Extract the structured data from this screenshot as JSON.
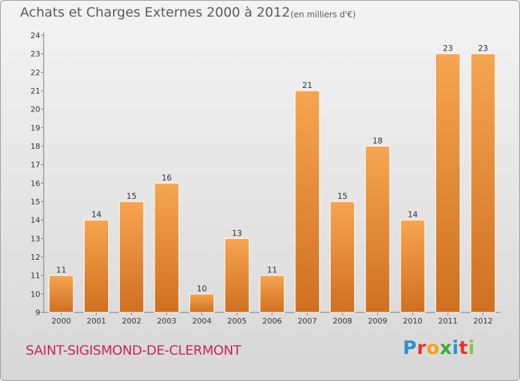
{
  "header": {
    "title": "Achats et Charges Externes 2000 à 2012",
    "unit": "(en milliers d'€)"
  },
  "footer": {
    "commune": "SAINT-SIGISMOND-DE-CLERMONT",
    "logo_text": "Proxiti"
  },
  "colors": {
    "bar_light": "#f6a550",
    "bar_dark": "#cf7020",
    "commune": "#c8245a",
    "logo_p": "#2f8fd0",
    "logo_r": "#e5352b",
    "logo_o": "#f3a21a",
    "logo_x": "#3aaa35",
    "logo_i": "#2f8fd0",
    "logo_t": "#e5352b",
    "logo_i2": "#8bc23f"
  },
  "chart_data": {
    "type": "bar",
    "title": "Achats et Charges Externes 2000 à 2012",
    "subtitle": "(en milliers d'€)",
    "categories": [
      "2000",
      "2001",
      "2002",
      "2003",
      "2004",
      "2005",
      "2006",
      "2007",
      "2008",
      "2009",
      "2010",
      "2011",
      "2012"
    ],
    "values": [
      11,
      14,
      15,
      16,
      10,
      13,
      11,
      21,
      15,
      18,
      14,
      23,
      23
    ],
    "yticks": [
      9,
      10,
      11,
      12,
      13,
      14,
      15,
      16,
      17,
      18,
      19,
      20,
      21,
      22,
      23,
      24
    ],
    "ylim": [
      9,
      24
    ],
    "grid": false,
    "legend": "none"
  }
}
